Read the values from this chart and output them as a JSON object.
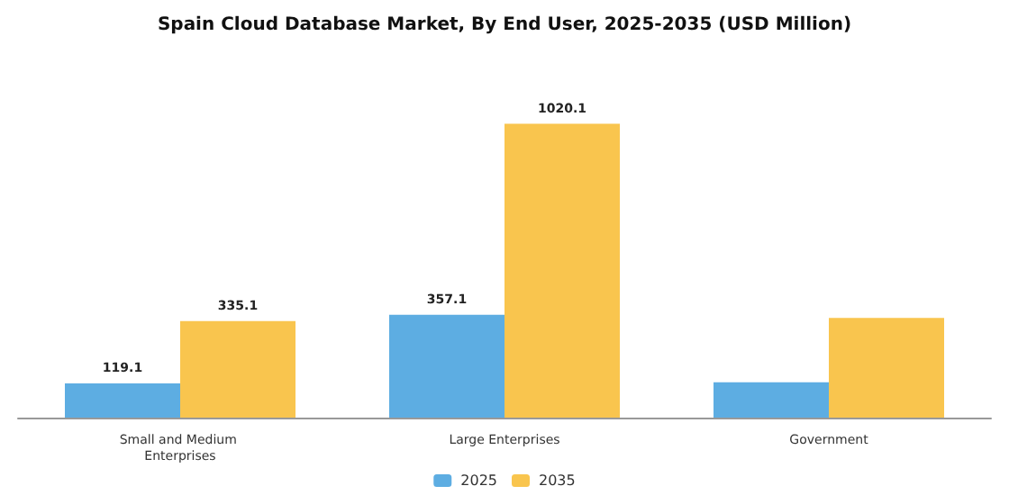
{
  "chart_data": {
    "type": "bar",
    "title": "Spain Cloud Database Market, By End User, 2025-2035 (USD Million)",
    "categories": [
      "Small and Medium Enterprises",
      "Large Enterprises",
      "Government"
    ],
    "series": [
      {
        "name": "2025",
        "color": "#5dade2",
        "values": [
          119.1,
          357.1,
          123
        ],
        "value_labels": [
          "119.1",
          "357.1",
          null
        ]
      },
      {
        "name": "2035",
        "color": "#f9c54e",
        "values": [
          335.1,
          1020.1,
          346
        ],
        "value_labels": [
          "335.1",
          "1020.1",
          null
        ]
      }
    ],
    "legend": "bottom"
  }
}
